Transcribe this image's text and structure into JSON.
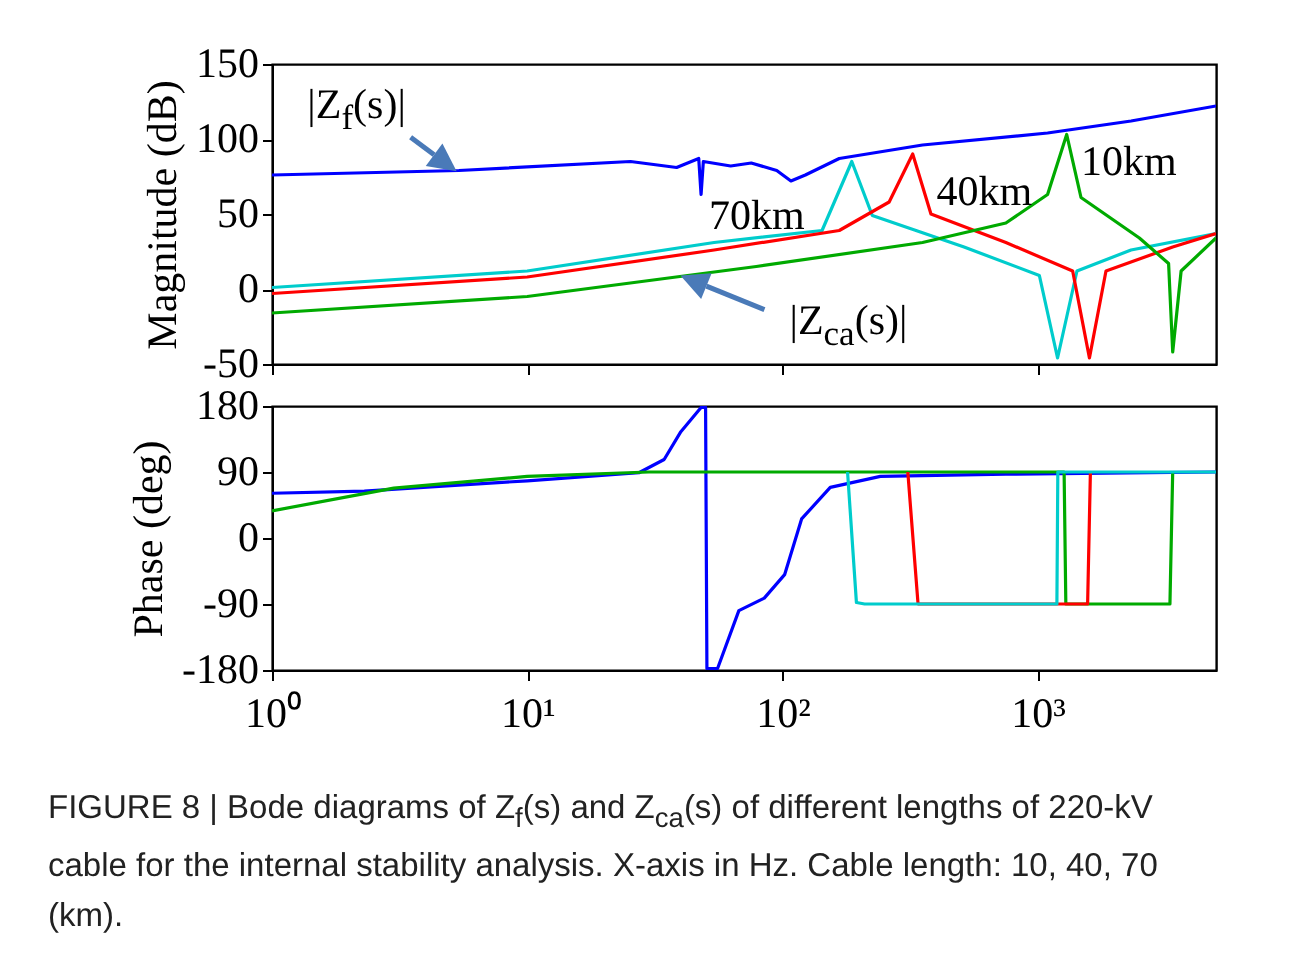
{
  "chart_data": [
    {
      "type": "line",
      "ylabel": "Magnitude (dB)",
      "log": "x",
      "xlim": [
        1,
        5000
      ],
      "xticks": [
        {
          "value": 1,
          "label": null
        },
        {
          "value": 10,
          "label": null
        },
        {
          "value": 100,
          "label": null
        },
        {
          "value": 1000,
          "label": null
        }
      ],
      "ylim": [
        -50,
        150
      ],
      "yticks": [
        -50,
        0,
        50,
        100,
        150
      ],
      "tick_labels": "y",
      "grid": false,
      "legend": false,
      "series": [
        {
          "color": "#0000ff",
          "x": [
            1,
            5.4,
            25.4,
            38.5,
            47,
            48,
            49,
            62.7,
            75.5,
            95,
            108,
            123,
            167,
            354,
            1094,
            2323,
            5000
          ],
          "values": [
            76,
            79,
            85,
            81,
            87,
            63,
            85,
            82,
            84,
            79,
            72,
            76,
            87,
            96,
            104,
            112,
            122
          ]
        },
        {
          "color": "#00cccc",
          "x": [
            1,
            10,
            54,
            143,
            187,
            225,
            515,
            1016,
            1197,
            1426,
            2323,
            5000
          ],
          "values": [
            1,
            12,
            31,
            39,
            85,
            49,
            28,
            9,
            -46,
            12,
            26,
            37
          ]
        },
        {
          "color": "#ff0000",
          "x": [
            1,
            10,
            54,
            167,
            262,
            324,
            382,
            751,
            1372,
            1596,
            1853,
            3383,
            5000
          ],
          "values": [
            -3,
            8,
            26,
            39,
            58,
            90,
            50,
            31,
            12,
            -46,
            12,
            28,
            37
          ]
        },
        {
          "color": "#00aa00",
          "x": [
            1,
            10,
            79,
            354,
            751,
            1094,
            1300,
            1479,
            2505,
            3260,
            3383,
            3650,
            5000
          ],
          "values": [
            -16,
            -5,
            15,
            31,
            44,
            63,
            103,
            61,
            34,
            17,
            -42,
            12,
            34
          ]
        }
      ],
      "annotations": [
        "|Z$_{f}$(s)|",
        "|Z$_{ca}$(s)|",
        "70km",
        "40km",
        "10km"
      ]
    },
    {
      "type": "line",
      "ylabel": "Phase (deg)",
      "log": "x",
      "xlim": [
        1,
        5000
      ],
      "xticks": [
        {
          "value": 1,
          "label": "10⁰"
        },
        {
          "value": 10,
          "label": "10¹"
        },
        {
          "value": 100,
          "label": "10²"
        },
        {
          "value": 1000,
          "label": "10³"
        }
      ],
      "ylim": [
        -180,
        180
      ],
      "yticks": [
        -180,
        -90,
        0,
        90,
        180
      ],
      "grid": false,
      "legend": false,
      "series": [
        {
          "color": "#0000ff",
          "x": [
            1,
            2.3,
            10,
            27.4,
            34.4,
            40,
            48,
            50,
            50.6,
            55.7,
            67.5,
            84.9,
            102,
            118.9,
            154,
            242,
            751,
            5000
          ],
          "values": [
            61,
            64,
            78,
            89,
            107,
            145,
            178,
            178,
            -178,
            -178,
            -99,
            -82,
            -50,
            26,
            69,
            84,
            87,
            90
          ]
        },
        {
          "color": "#00aa00",
          "x": [
            1,
            3,
            10,
            30,
            1270,
            1290,
            3300,
            3383
          ],
          "values": [
            37,
            68,
            84,
            90,
            90,
            -90,
            -90,
            90
          ]
        },
        {
          "color": "#ff0000",
          "x": [
            310,
            340,
            1570,
            1610
          ],
          "values": [
            90,
            -90,
            -90,
            90
          ]
        },
        {
          "color": "#00cccc",
          "x": [
            180,
            195,
            210,
            1190,
            1200,
            5000
          ],
          "values": [
            90,
            -88,
            -90,
            -90,
            90,
            90
          ]
        }
      ],
      "annotations": [
        "FIGURE 8 | Bode diagrams of Z$_{f}$(s) and Z$_{ca}$(s) of different lengths of 220-kV cable for the internal stability analysis. X-axis in Hz. Cable length: 10, 40, 70 (km)."
      ]
    }
  ]
}
